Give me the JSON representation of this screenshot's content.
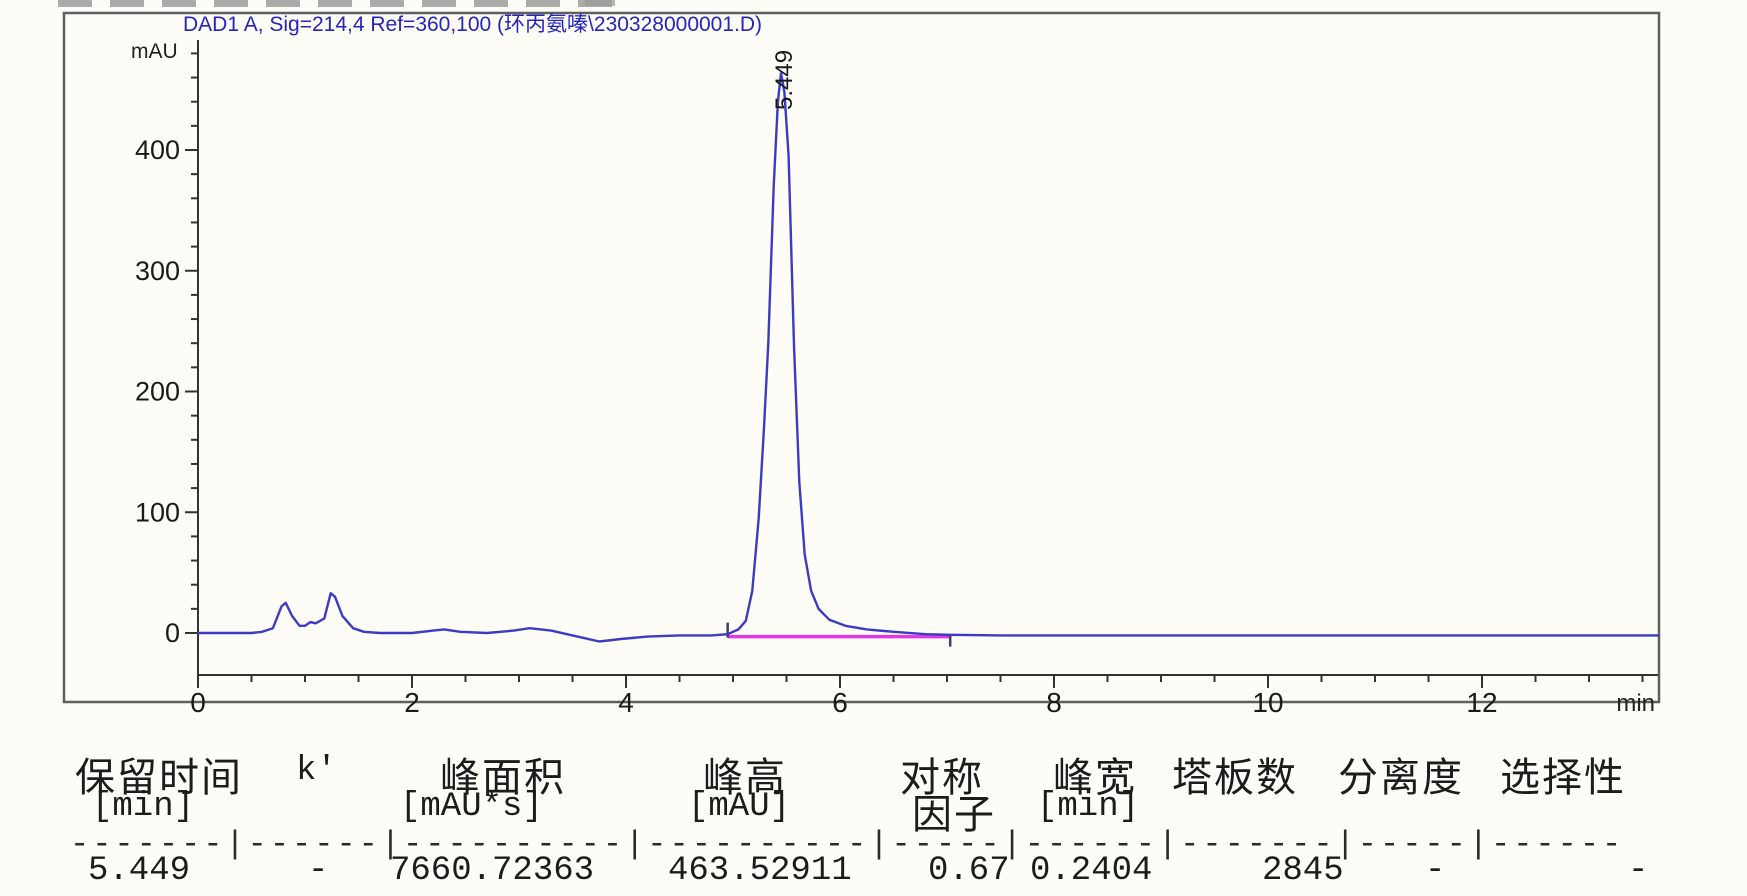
{
  "artifact": {
    "label": "cropped-text-edge"
  },
  "chart": {
    "title": "DAD1 A, Sig=214,4 Ref=360,100 (环丙氨嗪\\230328000001.D)",
    "title_color": "#2424c0",
    "y_axis_unit": "mAU",
    "x_axis_unit": "min",
    "peak_label": "5.449",
    "trace_color": "#3b3bc4",
    "baseline_color": "#e23ae2",
    "axis_color": "#333333"
  },
  "chart_data": {
    "type": "line",
    "title": "DAD1 A, Sig=214,4 Ref=360,100 (环丙氨嗪\\230328000001.D)",
    "xlabel": "min",
    "ylabel": "mAU",
    "xlim": [
      0,
      13.66
    ],
    "ylim": [
      -58,
      491
    ],
    "x_major_ticks": [
      0,
      2,
      4,
      6,
      8,
      10,
      12
    ],
    "x_minor_step": 0.5,
    "y_major_ticks": [
      0,
      100,
      200,
      300,
      400
    ],
    "y_minor_step": 20,
    "grid": false,
    "legend": "none",
    "series": [
      {
        "name": "DAD1 A signal",
        "color": "#3b3bc4",
        "points": [
          [
            0,
            0
          ],
          [
            0.5,
            0
          ],
          [
            0.6,
            1
          ],
          [
            0.7,
            4
          ],
          [
            0.78,
            22
          ],
          [
            0.82,
            25
          ],
          [
            0.88,
            14
          ],
          [
            0.95,
            6
          ],
          [
            1.0,
            6
          ],
          [
            1.05,
            9
          ],
          [
            1.1,
            8
          ],
          [
            1.18,
            12
          ],
          [
            1.24,
            33
          ],
          [
            1.28,
            30
          ],
          [
            1.35,
            14
          ],
          [
            1.45,
            4
          ],
          [
            1.55,
            1
          ],
          [
            1.7,
            0
          ],
          [
            2.0,
            0
          ],
          [
            2.2,
            2
          ],
          [
            2.3,
            3
          ],
          [
            2.45,
            1
          ],
          [
            2.7,
            0
          ],
          [
            2.95,
            2
          ],
          [
            3.1,
            4
          ],
          [
            3.3,
            2
          ],
          [
            3.5,
            -2
          ],
          [
            3.75,
            -7
          ],
          [
            3.95,
            -5
          ],
          [
            4.2,
            -3
          ],
          [
            4.5,
            -2
          ],
          [
            4.8,
            -2
          ],
          [
            4.95,
            -1
          ],
          [
            5.05,
            3
          ],
          [
            5.12,
            10
          ],
          [
            5.18,
            35
          ],
          [
            5.24,
            95
          ],
          [
            5.29,
            170
          ],
          [
            5.33,
            240
          ],
          [
            5.38,
            370
          ],
          [
            5.42,
            440
          ],
          [
            5.449,
            463.5
          ],
          [
            5.48,
            448
          ],
          [
            5.52,
            395
          ],
          [
            5.57,
            238
          ],
          [
            5.62,
            125
          ],
          [
            5.67,
            65
          ],
          [
            5.73,
            35
          ],
          [
            5.8,
            20
          ],
          [
            5.9,
            11
          ],
          [
            6.05,
            6
          ],
          [
            6.25,
            3
          ],
          [
            6.5,
            1
          ],
          [
            6.8,
            -1
          ],
          [
            7.03,
            -1.5
          ],
          [
            7.5,
            -2
          ],
          [
            8.5,
            -2
          ],
          [
            9.5,
            -2
          ],
          [
            10.5,
            -2
          ],
          [
            11.5,
            -2
          ],
          [
            12.5,
            -2
          ],
          [
            13.65,
            -2
          ]
        ]
      }
    ],
    "integration_baseline": {
      "x_start": 4.95,
      "x_end": 7.03,
      "y": -3,
      "color": "#e23ae2"
    },
    "annotations": [
      {
        "text": "5.449",
        "x": 5.449,
        "y": 463.5,
        "rotation": -90
      }
    ]
  },
  "peak_table": {
    "headers": [
      "保留时间",
      "k'",
      "峰面积",
      "峰高",
      "对称",
      "峰宽",
      "塔板数",
      "分离度",
      "选择性"
    ],
    "units": [
      "[min]",
      "[mAU*s]",
      "[mAU]",
      "因子",
      "[min]"
    ],
    "separator": "-------|------|----------|----------|-----|------|-------|-----|------",
    "rows": [
      [
        "5.449",
        "-",
        "7660.72363",
        "463.52911",
        "0.67",
        "0.2404",
        "2845",
        "-",
        "-"
      ]
    ]
  }
}
